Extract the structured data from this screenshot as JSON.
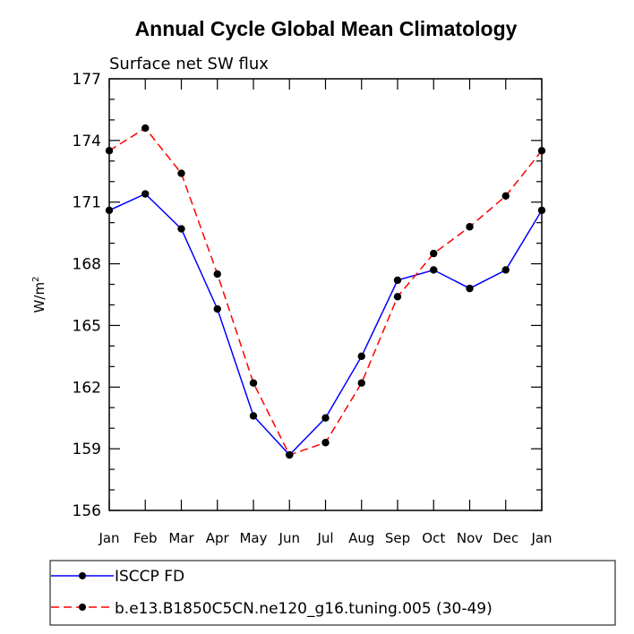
{
  "chart_data": {
    "type": "line",
    "title": "Annual Cycle Global Mean Climatology",
    "subtitle": "Surface net SW flux",
    "xlabel": "",
    "ylabel": "W/m",
    "ylabel_superscript": "2",
    "ylim": [
      156,
      177
    ],
    "yticks": [
      156,
      159,
      162,
      165,
      168,
      171,
      174,
      177
    ],
    "categories": [
      "Jan",
      "Feb",
      "Mar",
      "Apr",
      "May",
      "Jun",
      "Jul",
      "Aug",
      "Sep",
      "Oct",
      "Nov",
      "Dec",
      "Jan"
    ],
    "series": [
      {
        "name": "ISCCP FD",
        "color": "#0000ff",
        "dash": "solid",
        "values": [
          170.6,
          171.4,
          169.7,
          165.8,
          160.6,
          158.7,
          160.5,
          163.5,
          167.2,
          167.7,
          166.8,
          167.7,
          170.6
        ]
      },
      {
        "name": "b.e13.B1850C5CN.ne120_g16.tuning.005 (30-49)",
        "color": "#ff0000",
        "dash": "dashed",
        "values": [
          173.5,
          174.6,
          172.4,
          167.5,
          162.2,
          158.7,
          159.3,
          162.2,
          166.4,
          168.5,
          169.8,
          171.3,
          173.5
        ]
      }
    ],
    "marker_color": "#000000"
  }
}
